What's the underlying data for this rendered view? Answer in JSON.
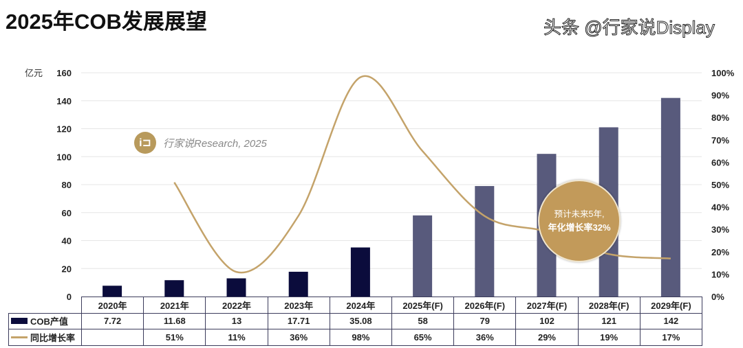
{
  "title": "2025年COB发展展望",
  "watermark_logo_text": "行家说Research, 2025",
  "logo_glyph": "i⊐",
  "annotation": {
    "line1": "预计未来5年,",
    "line2": "年化增长率32%"
  },
  "footer_watermark": "头条 @行家说Display",
  "colors": {
    "bar_actual": "#0b0c3c",
    "bar_forecast": "#585a7c",
    "line": "#c4a36a",
    "grid": "#e6e6e6"
  },
  "chart_data": {
    "type": "bar+line",
    "title": "2025年COB发展展望",
    "ylabel": "亿元",
    "ylim": [
      0,
      160
    ],
    "yticks": [
      "0",
      "20",
      "40",
      "60",
      "80",
      "100",
      "120",
      "140",
      "160"
    ],
    "y2lim": [
      0,
      100
    ],
    "y2ticks": [
      "0%",
      "10%",
      "20%",
      "30%",
      "40%",
      "50%",
      "60%",
      "70%",
      "80%",
      "90%",
      "100%"
    ],
    "grid": true,
    "categories": [
      "2020年",
      "2021年",
      "2022年",
      "2023年",
      "2024年",
      "2025年(F)",
      "2026年(F)",
      "2027年(F)",
      "2028年(F)",
      "2029年(F)"
    ],
    "series": [
      {
        "name": "COB产值",
        "type": "bar",
        "axis": "left",
        "values": [
          7.72,
          11.68,
          13,
          17.71,
          35.08,
          58,
          79,
          102,
          121,
          142
        ],
        "labels": [
          "7.72",
          "11.68",
          "13",
          "17.71",
          "35.08",
          "58",
          "79",
          "102",
          "121",
          "142"
        ],
        "forecast_from_index": 5
      },
      {
        "name": "同比增长率",
        "type": "line",
        "axis": "right",
        "values": [
          null,
          51,
          11,
          36,
          98,
          65,
          36,
          29,
          19,
          17
        ],
        "labels": [
          "",
          "51%",
          "11%",
          "36%",
          "98%",
          "65%",
          "36%",
          "29%",
          "19%",
          "17%"
        ]
      }
    ]
  }
}
